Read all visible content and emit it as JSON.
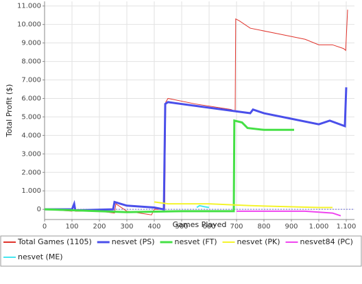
{
  "chart_data": {
    "type": "line",
    "x_label": "Games Played",
    "y_label": "Total Profit ($)",
    "xlim": [
      0,
      1130
    ],
    "ylim": [
      -0.55,
      11.25
    ],
    "xticks": [
      0,
      100,
      200,
      300,
      400,
      500,
      600,
      700,
      800,
      900,
      {
        "value": 1000,
        "label": "1.000"
      },
      {
        "value": 1100,
        "label": "1.100"
      }
    ],
    "yticks": [
      0,
      {
        "value": 1,
        "label": "1.000"
      },
      {
        "value": 2,
        "label": "2.000"
      },
      {
        "value": 3,
        "label": "3.000"
      },
      {
        "value": 4,
        "label": "4.000"
      },
      {
        "value": 5,
        "label": "5.000"
      },
      {
        "value": 6,
        "label": "6.000"
      },
      {
        "value": 7,
        "label": "7.000"
      },
      {
        "value": 8,
        "label": "8.000"
      },
      {
        "value": 9,
        "label": "9.000"
      },
      {
        "value": 10,
        "label": "10.000"
      },
      {
        "value": 11,
        "label": "11.000"
      }
    ],
    "grid": true,
    "series": [
      {
        "name": "Total Games (1105)",
        "color": "#e0332b",
        "x": [
          0,
          50,
          100,
          108,
          112,
          200,
          255,
          260,
          300,
          390,
          400,
          438,
          442,
          450,
          550,
          680,
          695,
          697,
          710,
          750,
          850,
          950,
          1000,
          1050,
          1090,
          1098,
          1105
        ],
        "values": [
          0,
          -0.05,
          -0.1,
          0.2,
          -0.1,
          -0.1,
          -0.2,
          0.3,
          -0.1,
          -0.3,
          0,
          0,
          5.8,
          6.0,
          5.7,
          5.4,
          5.3,
          10.3,
          10.2,
          9.8,
          9.5,
          9.2,
          8.9,
          8.9,
          8.7,
          8.6,
          10.8
        ]
      },
      {
        "name": "nesvet (PS)",
        "color": "#4a4fea",
        "x": [
          0,
          100,
          108,
          112,
          250,
          255,
          300,
          400,
          435,
          440,
          450,
          600,
          700,
          750,
          760,
          800,
          900,
          1000,
          1040,
          1095,
          1100
        ],
        "values": [
          0,
          0,
          0.3,
          -0.05,
          0,
          0.4,
          0.2,
          0.1,
          0,
          5.7,
          5.8,
          5.5,
          5.3,
          5.2,
          5.4,
          5.2,
          4.9,
          4.6,
          4.8,
          4.5,
          6.6
        ]
      },
      {
        "name": "nesvet (FT)",
        "color": "#45e045",
        "x": [
          0,
          200,
          300,
          500,
          690,
          692,
          720,
          740,
          800,
          910
        ],
        "values": [
          0,
          -0.1,
          -0.15,
          -0.1,
          -0.1,
          4.8,
          4.7,
          4.4,
          4.3,
          4.3
        ]
      },
      {
        "name": "nesvet (PK)",
        "color": "#f4f42c",
        "x": [
          400,
          450,
          600,
          750,
          1000,
          1050
        ],
        "values": [
          0.4,
          0.3,
          0.3,
          0.2,
          0.1,
          0.1
        ]
      },
      {
        "name": "nesvet84 (PC)",
        "color": "#ef45ef",
        "x": [
          700,
          950,
          1050,
          1080
        ],
        "values": [
          -0.1,
          -0.1,
          -0.2,
          -0.35
        ]
      },
      {
        "name": "nesvet (ME)",
        "color": "#45e6f0",
        "x": [
          555,
          565,
          580,
          600
        ],
        "values": [
          0.1,
          0.2,
          0.15,
          0.1
        ]
      }
    ]
  }
}
